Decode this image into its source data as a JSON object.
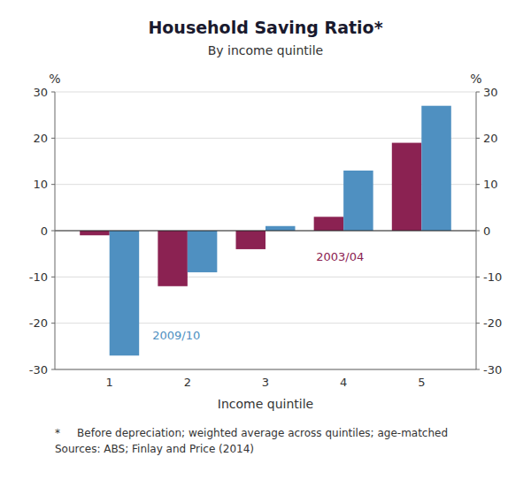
{
  "chart_data": {
    "type": "bar",
    "title": "Household Saving Ratio*",
    "subtitle": "By income quintile",
    "xlabel": "Income quintile",
    "ylabel": "%",
    "y2label": "%",
    "x": [
      1,
      2,
      3,
      4,
      5
    ],
    "xlim": [
      0.3,
      5.7
    ],
    "xticks": [
      1,
      2,
      3,
      4,
      5
    ],
    "series": [
      {
        "name": "2003/04",
        "color": "#8B2252",
        "values": [
          -1.0,
          -12.0,
          -4.0,
          3.0,
          19.0
        ]
      },
      {
        "name": "2009/10",
        "color": "#4F90C1",
        "values": [
          -27.0,
          -9.0,
          1.0,
          13.0,
          27.0
        ]
      }
    ],
    "ylim": [
      -30,
      30
    ],
    "yticks": [
      -30,
      -20,
      -10,
      0,
      10,
      20,
      30
    ],
    "y2lim": [
      -30,
      30
    ],
    "y2ticks": [
      -30,
      -20,
      -10,
      0,
      10,
      20,
      30
    ],
    "grid": true,
    "annotations": [
      {
        "text": "2003/04",
        "x": 3.65,
        "y": -6.5,
        "color": "#8B2252"
      },
      {
        "text": "2009/10",
        "x": 1.55,
        "y": -23.5,
        "color": "#4F90C1"
      }
    ],
    "footnotes": [
      "*     Before depreciation; weighted average across quintiles; age-matched",
      "Sources: ABS; Finlay and Price (2014)"
    ]
  }
}
